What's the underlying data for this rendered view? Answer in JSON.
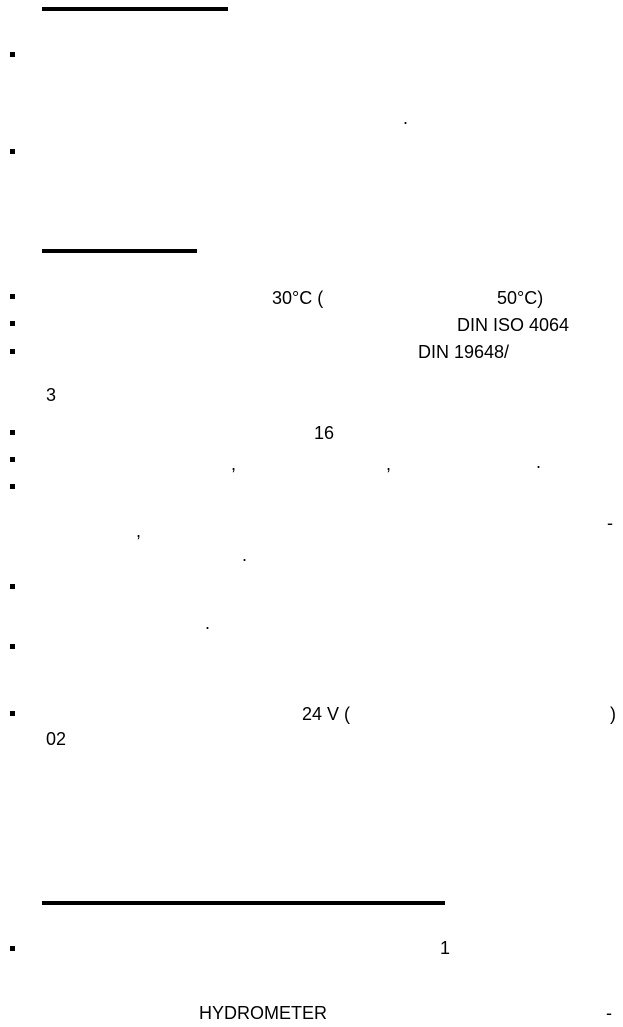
{
  "section1": {
    "dot": "."
  },
  "section2": {
    "temp_30": "30°C (",
    "temp_50": "50°C)",
    "din_iso": "DIN ISO 4064",
    "din_19648": "DIN 19648/",
    "three": "3",
    "sixteen": "16",
    "comma1": ",",
    "comma2": ",",
    "period1": ".",
    "dash1": "-",
    "comma3": ",",
    "period2": ".",
    "period3": ".",
    "voltage": "24  V (",
    "paren_close": ")",
    "code": "02"
  },
  "section3": {
    "one": "1",
    "hydrometer": "HYDROMETER",
    "dash2": "-"
  }
}
